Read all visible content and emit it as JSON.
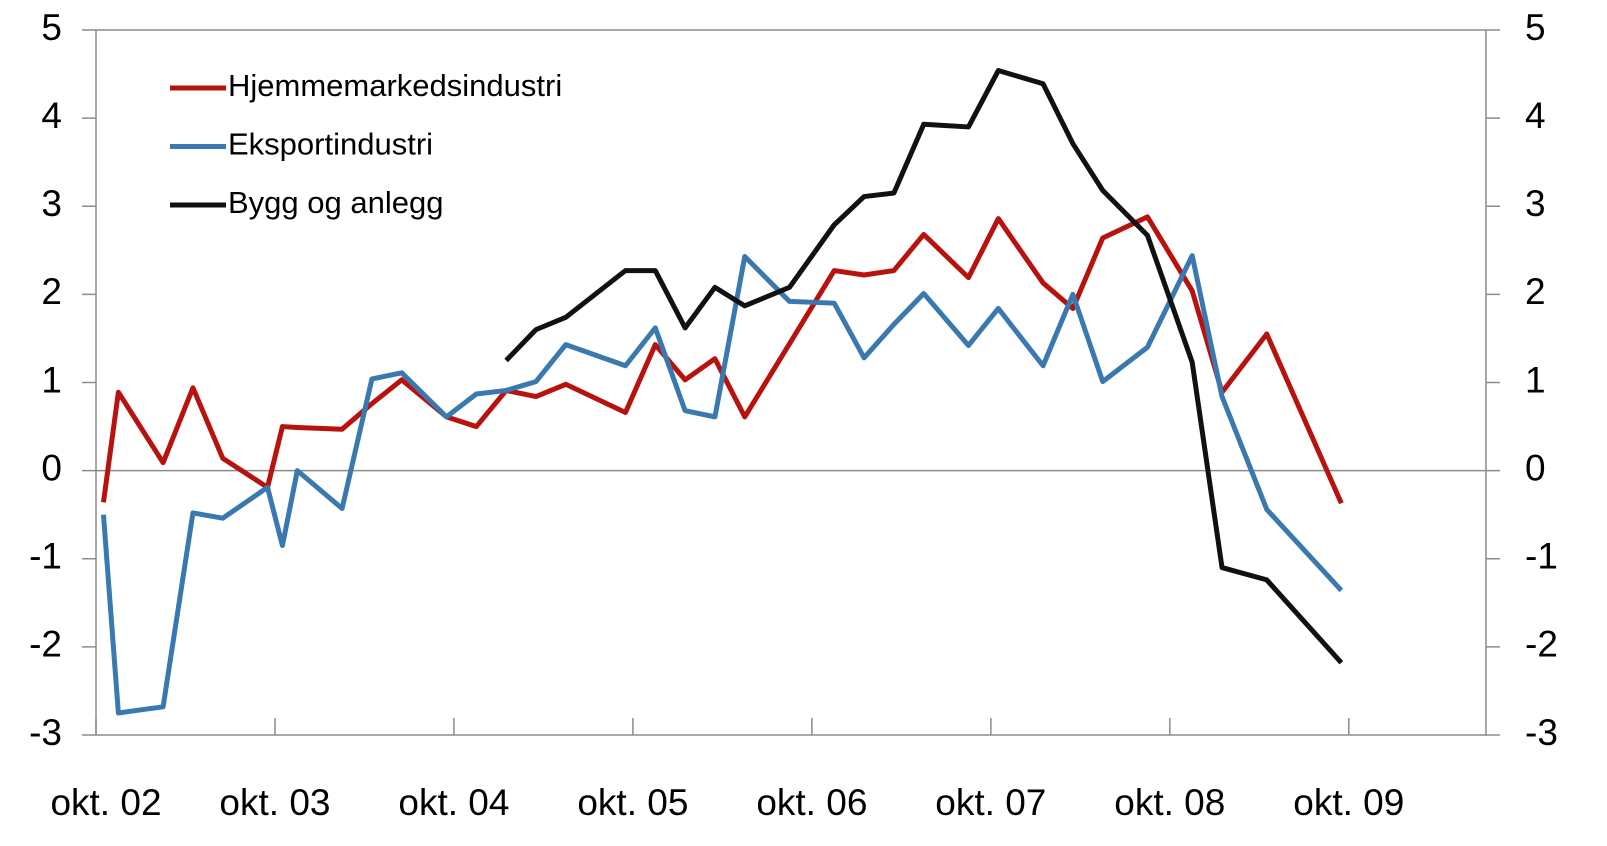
{
  "chart_data": {
    "type": "line",
    "xlim": [
      0,
      93.2
    ],
    "xticks": [
      {
        "value": 0,
        "label": "okt. 02"
      },
      {
        "value": 12,
        "label": "okt. 03"
      },
      {
        "value": 24,
        "label": "okt. 04"
      },
      {
        "value": 36,
        "label": "okt. 05"
      },
      {
        "value": 48,
        "label": "okt. 06"
      },
      {
        "value": 60,
        "label": "okt. 07"
      },
      {
        "value": 72,
        "label": "okt. 08"
      },
      {
        "value": 84,
        "label": "okt. 09"
      }
    ],
    "ylim": [
      -3,
      5
    ],
    "yticks": [
      -3,
      -2,
      -1,
      0,
      1,
      2,
      3,
      4,
      5
    ],
    "series": [
      {
        "name": "Hjemmemarkedsindustri",
        "color": "#b8120e",
        "x": [
          0.5,
          1.5,
          4.5,
          6.5,
          8.5,
          11.5,
          12.5,
          13.5,
          16.5,
          18.5,
          20.5,
          23.5,
          25.5,
          27.5,
          29.5,
          31.5,
          35.5,
          37.5,
          39.5,
          41.5,
          43.5,
          49.5,
          51.5,
          53.5,
          55.5,
          58.5,
          60.5,
          63.5,
          65.5,
          67.5,
          70.5,
          73.5,
          75.5,
          78.5,
          83.5
        ],
        "values": [
          -0.36,
          0.89,
          0.09,
          0.94,
          0.14,
          -0.19,
          0.5,
          0.49,
          0.47,
          0.76,
          1.03,
          0.61,
          0.5,
          0.91,
          0.84,
          0.98,
          0.66,
          1.43,
          1.03,
          1.27,
          0.61,
          2.27,
          2.22,
          2.27,
          2.68,
          2.19,
          2.86,
          2.13,
          1.84,
          2.64,
          2.88,
          2.04,
          0.89,
          1.55,
          -0.37
        ]
      },
      {
        "name": "Eksportindustri",
        "color": "#3a78b0",
        "x": [
          0.5,
          1.5,
          4.5,
          6.5,
          8.5,
          11.5,
          12.5,
          13.5,
          16.5,
          18.5,
          20.5,
          23.5,
          25.5,
          27.5,
          29.5,
          31.5,
          35.5,
          37.5,
          39.5,
          41.5,
          43.5,
          46.5,
          49.5,
          51.5,
          53.5,
          55.5,
          58.5,
          60.5,
          63.5,
          65.5,
          67.5,
          70.5,
          73.5,
          75.5,
          78.5,
          83.5
        ],
        "values": [
          -0.5,
          -2.75,
          -2.68,
          -0.48,
          -0.54,
          -0.19,
          -0.85,
          0,
          -0.43,
          1.04,
          1.11,
          0.61,
          0.87,
          0.91,
          1.01,
          1.43,
          1.19,
          1.62,
          0.68,
          0.61,
          2.43,
          1.92,
          1.9,
          1.28,
          1.66,
          2.01,
          1.42,
          1.84,
          1.19,
          2.0,
          1.01,
          1.4,
          2.44,
          0.84,
          -0.44,
          -1.36
        ]
      },
      {
        "name": "Bygg og anlegg",
        "color": "#111111",
        "x": [
          27.5,
          29.5,
          31.5,
          35.5,
          37.5,
          39.5,
          41.5,
          43.5,
          46.5,
          49.5,
          51.5,
          53.5,
          55.5,
          58.5,
          60.5,
          63.5,
          65.5,
          67.5,
          70.5,
          73.5,
          75.5,
          78.5,
          83.5
        ],
        "values": [
          1.25,
          1.6,
          1.74,
          2.27,
          2.27,
          1.62,
          2.08,
          1.87,
          2.08,
          2.79,
          3.11,
          3.15,
          3.93,
          3.9,
          4.54,
          4.39,
          3.71,
          3.18,
          2.67,
          1.23,
          -1.1,
          -1.24,
          -2.18
        ]
      }
    ]
  }
}
